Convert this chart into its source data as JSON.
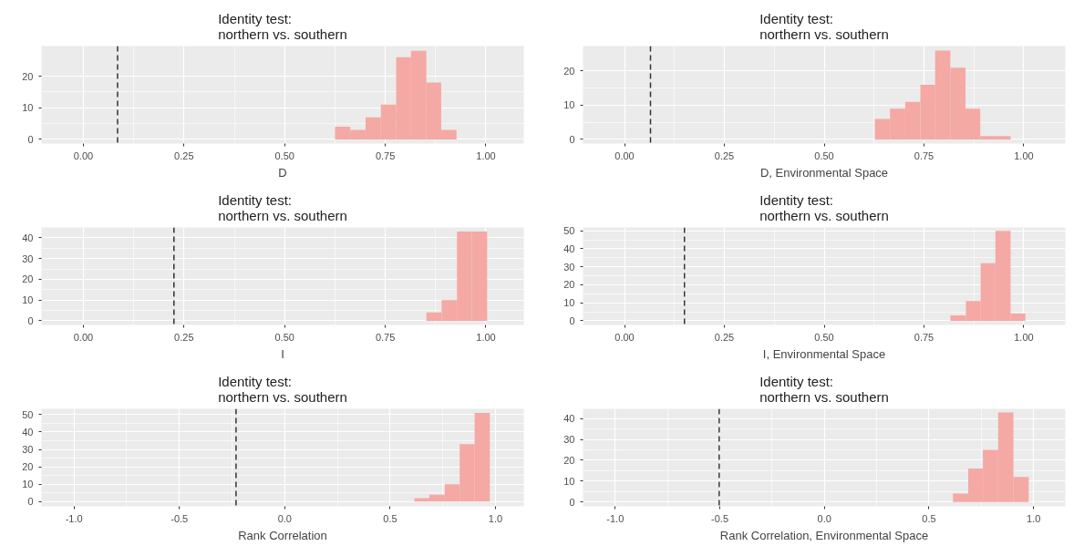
{
  "chart_data": [
    {
      "type": "histogram",
      "title": "Identity test:\nnorthern vs. southern",
      "xlabel": "D",
      "color": "#f4a9a5",
      "grid": true,
      "bins": [
        0.625,
        0.663,
        0.701,
        0.739,
        0.777,
        0.814,
        0.852,
        0.889,
        0.927
      ],
      "values": [
        4,
        3,
        7,
        11,
        26,
        28,
        18,
        3
      ],
      "xlim": [
        -0.104,
        1.094
      ],
      "ylim": [
        -1.3,
        29.5
      ],
      "xticks": [
        {
          "value": 0,
          "label": "0.00"
        },
        {
          "value": 0.25,
          "label": "0.25"
        },
        {
          "value": 0.5,
          "label": "0.50"
        },
        {
          "value": 0.75,
          "label": "0.75"
        },
        {
          "value": 1,
          "label": "1.00"
        }
      ],
      "yticks": [
        0,
        10,
        20
      ],
      "ref_lines": [
        {
          "axis": "x",
          "value": 0.085,
          "color": "#333333",
          "line_style": "dashed"
        }
      ]
    },
    {
      "type": "histogram",
      "title": "Identity test:\nnorthern vs. southern",
      "xlabel": "D, Environmental Space",
      "color": "#f4a9a5",
      "grid": true,
      "bins": [
        0.627,
        0.665,
        0.703,
        0.741,
        0.778,
        0.816,
        0.854,
        0.891,
        0.929,
        0.967
      ],
      "values": [
        6,
        9,
        11,
        16,
        26,
        21,
        9,
        1,
        1
      ],
      "xlim": [
        -0.104,
        1.104
      ],
      "ylim": [
        -1.2,
        27.3
      ],
      "xticks": [
        {
          "value": 0,
          "label": "0.00"
        },
        {
          "value": 0.25,
          "label": "0.25"
        },
        {
          "value": 0.5,
          "label": "0.50"
        },
        {
          "value": 0.75,
          "label": "0.75"
        },
        {
          "value": 1,
          "label": "1.00"
        }
      ],
      "yticks": [
        0,
        10,
        20
      ],
      "ref_lines": [
        {
          "axis": "x",
          "value": 0.065,
          "color": "#333333",
          "line_style": "dashed"
        }
      ]
    },
    {
      "type": "histogram",
      "title": "Identity test:\nnorthern vs. southern",
      "xlabel": "I",
      "color": "#f4a9a5",
      "grid": true,
      "bins": [
        0.852,
        0.89,
        0.928,
        0.965,
        1.003
      ],
      "values": [
        4,
        10,
        43,
        43
      ],
      "xlim": [
        -0.104,
        1.094
      ],
      "ylim": [
        -2,
        45
      ],
      "xticks": [
        {
          "value": 0,
          "label": "0.00"
        },
        {
          "value": 0.25,
          "label": "0.25"
        },
        {
          "value": 0.5,
          "label": "0.50"
        },
        {
          "value": 0.75,
          "label": "0.75"
        },
        {
          "value": 1,
          "label": "1.00"
        }
      ],
      "yticks": [
        0,
        10,
        20,
        30,
        40
      ],
      "ref_lines": [
        {
          "axis": "x",
          "value": 0.225,
          "color": "#333333",
          "line_style": "dashed"
        }
      ]
    },
    {
      "type": "histogram",
      "title": "Identity test:\nnorthern vs. southern",
      "xlabel": "I, Environmental Space",
      "color": "#f4a9a5",
      "grid": true,
      "bins": [
        0.816,
        0.855,
        0.892,
        0.929,
        0.967,
        1.004
      ],
      "values": [
        3,
        11,
        32,
        50,
        4
      ],
      "xlim": [
        -0.104,
        1.104
      ],
      "ylim": [
        -2.3,
        51.9
      ],
      "xticks": [
        {
          "value": 0,
          "label": "0.00"
        },
        {
          "value": 0.25,
          "label": "0.25"
        },
        {
          "value": 0.5,
          "label": "0.50"
        },
        {
          "value": 0.75,
          "label": "0.75"
        },
        {
          "value": 1,
          "label": "1.00"
        }
      ],
      "yticks": [
        0,
        10,
        20,
        30,
        40,
        50
      ],
      "ref_lines": [
        {
          "axis": "x",
          "value": 0.15,
          "color": "#333333",
          "line_style": "dashed"
        }
      ]
    },
    {
      "type": "histogram",
      "title": "Identity test:\nnorthern vs. southern",
      "xlabel": "Rank Correlation",
      "color": "#f4a9a5",
      "grid": true,
      "bins": [
        0.615,
        0.686,
        0.759,
        0.83,
        0.901,
        0.973
      ],
      "values": [
        2,
        4,
        10,
        33,
        51
      ],
      "xlim": [
        -1.154,
        1.134
      ],
      "ylim": [
        -2.7,
        53.3
      ],
      "xticks": [
        {
          "value": -1,
          "label": "-1.0"
        },
        {
          "value": -0.5,
          "label": "-0.5"
        },
        {
          "value": 0,
          "label": "0.0"
        },
        {
          "value": 0.5,
          "label": "0.5"
        },
        {
          "value": 1,
          "label": "1.0"
        }
      ],
      "yticks": [
        0,
        10,
        20,
        30,
        40,
        50
      ],
      "ref_lines": [
        {
          "axis": "x",
          "value": -0.231,
          "color": "#333333",
          "line_style": "dashed"
        }
      ]
    },
    {
      "type": "histogram",
      "title": "Identity test:\nnorthern vs. southern",
      "xlabel": "Rank Correlation, Environmental Space",
      "color": "#f4a9a5",
      "grid": true,
      "bins": [
        0.615,
        0.688,
        0.758,
        0.831,
        0.904,
        0.977
      ],
      "values": [
        4,
        16,
        25,
        43,
        12
      ],
      "xlim": [
        -1.154,
        1.152
      ],
      "ylim": [
        -2.1,
        44.7
      ],
      "xticks": [
        {
          "value": -1,
          "label": "-1.0"
        },
        {
          "value": -0.5,
          "label": "-0.5"
        },
        {
          "value": 0,
          "label": "0.0"
        },
        {
          "value": 0.5,
          "label": "0.5"
        },
        {
          "value": 1,
          "label": "1.0"
        }
      ],
      "yticks": [
        0,
        10,
        20,
        30,
        40
      ],
      "ref_lines": [
        {
          "axis": "x",
          "value": -0.503,
          "color": "#333333",
          "line_style": "dashed"
        }
      ]
    }
  ]
}
